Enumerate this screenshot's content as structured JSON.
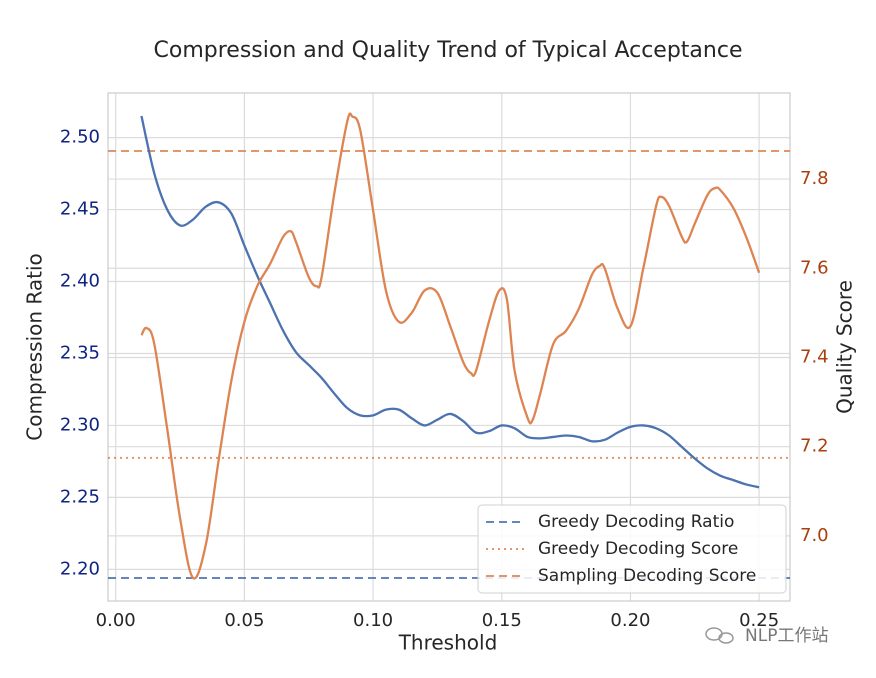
{
  "chart_data": {
    "type": "line",
    "title": "Compression and Quality Trend of Typical Acceptance",
    "xlabel": "Threshold",
    "ylabel": "Compression Ratio",
    "y2label": "Quality Score",
    "xlim": [
      -0.003,
      0.262
    ],
    "ylim": [
      2.178,
      2.531
    ],
    "y2lim": [
      6.854,
      7.993
    ],
    "xticks": [
      {
        "value": 0,
        "label": "0.00"
      },
      0.05,
      {
        "value": 0.1,
        "label": "0.10"
      },
      0.15,
      {
        "value": 0.2,
        "label": "0.20"
      },
      0.25
    ],
    "yticks": [
      {
        "value": 2.2,
        "label": "2.20"
      },
      2.25,
      {
        "value": 2.3,
        "label": "2.30"
      },
      2.35,
      {
        "value": 2.4,
        "label": "2.40"
      },
      2.45,
      {
        "value": 2.5,
        "label": "2.50"
      }
    ],
    "y2ticks": [
      {
        "value": 7,
        "label": "7.0"
      },
      7.2,
      7.4,
      7.6,
      7.8
    ],
    "ytick_color": "#0d2481",
    "y2tick_color": "#a8400e",
    "grid": true,
    "legend": "lower right",
    "series": [
      {
        "color": "#4c72b0",
        "x": [
          0.01,
          0.015,
          0.02,
          0.025,
          0.03,
          0.035,
          0.04,
          0.045,
          0.05,
          0.055,
          0.06,
          0.065,
          0.07,
          0.075,
          0.08,
          0.085,
          0.09,
          0.095,
          0.1,
          0.105,
          0.11,
          0.115,
          0.12,
          0.125,
          0.13,
          0.135,
          0.14,
          0.145,
          0.15,
          0.155,
          0.16,
          0.165,
          0.17,
          0.175,
          0.18,
          0.185,
          0.19,
          0.195,
          0.2,
          0.205,
          0.21,
          0.215,
          0.22,
          0.225,
          0.23,
          0.235,
          0.24,
          0.245,
          0.25
        ],
        "values": [
          2.515,
          2.475,
          2.45,
          2.439,
          2.443,
          2.452,
          2.455,
          2.447,
          2.425,
          2.404,
          2.385,
          2.366,
          2.351,
          2.342,
          2.333,
          2.322,
          2.312,
          2.307,
          2.307,
          2.311,
          2.311,
          2.305,
          2.3,
          2.304,
          2.308,
          2.303,
          2.295,
          2.296,
          2.3,
          2.298,
          2.292,
          2.291,
          2.292,
          2.293,
          2.292,
          2.289,
          2.29,
          2.295,
          2.299,
          2.3,
          2.298,
          2.293,
          2.285,
          2.277,
          2.27,
          2.265,
          2.262,
          2.259,
          2.257
        ]
      },
      {
        "color": "#dd8452",
        "axis": "y2",
        "x": [
          0.01,
          0.012,
          0.015,
          0.02,
          0.025,
          0.03,
          0.035,
          0.04,
          0.045,
          0.05,
          0.055,
          0.06,
          0.065,
          0.068,
          0.07,
          0.075,
          0.078,
          0.08,
          0.085,
          0.09,
          0.092,
          0.095,
          0.1,
          0.105,
          0.11,
          0.115,
          0.12,
          0.125,
          0.13,
          0.135,
          0.138,
          0.14,
          0.145,
          0.149,
          0.152,
          0.155,
          0.16,
          0.162,
          0.165,
          0.17,
          0.175,
          0.18,
          0.185,
          0.188,
          0.19,
          0.195,
          0.2,
          0.205,
          0.21,
          0.212,
          0.215,
          0.22,
          0.222,
          0.225,
          0.23,
          0.233,
          0.235,
          0.24,
          0.245,
          0.25
        ],
        "values": [
          7.45,
          7.466,
          7.43,
          7.24,
          7.04,
          6.906,
          6.98,
          7.17,
          7.35,
          7.48,
          7.56,
          7.61,
          7.67,
          7.683,
          7.66,
          7.58,
          7.56,
          7.58,
          7.77,
          7.93,
          7.94,
          7.91,
          7.73,
          7.55,
          7.48,
          7.5,
          7.55,
          7.545,
          7.47,
          7.39,
          7.365,
          7.37,
          7.48,
          7.55,
          7.53,
          7.37,
          7.265,
          7.26,
          7.32,
          7.43,
          7.46,
          7.51,
          7.585,
          7.605,
          7.6,
          7.51,
          7.47,
          7.6,
          7.74,
          7.76,
          7.74,
          7.67,
          7.66,
          7.7,
          7.765,
          7.78,
          7.775,
          7.735,
          7.67,
          7.59
        ]
      }
    ],
    "reference_lines": [
      {
        "name": "Greedy Decoding Ratio",
        "value": 2.194,
        "color": "#4c72b0",
        "style": "dashed"
      },
      {
        "name": "Greedy Decoding Score",
        "value": 7.175,
        "color": "#dd8452",
        "style": "dotted",
        "axis": "y2"
      },
      {
        "name": "Sampling Decoding Score",
        "value": 7.863,
        "color": "#dd8452",
        "style": "dashed",
        "axis": "y2"
      }
    ],
    "watermark": "NLP工作站"
  }
}
